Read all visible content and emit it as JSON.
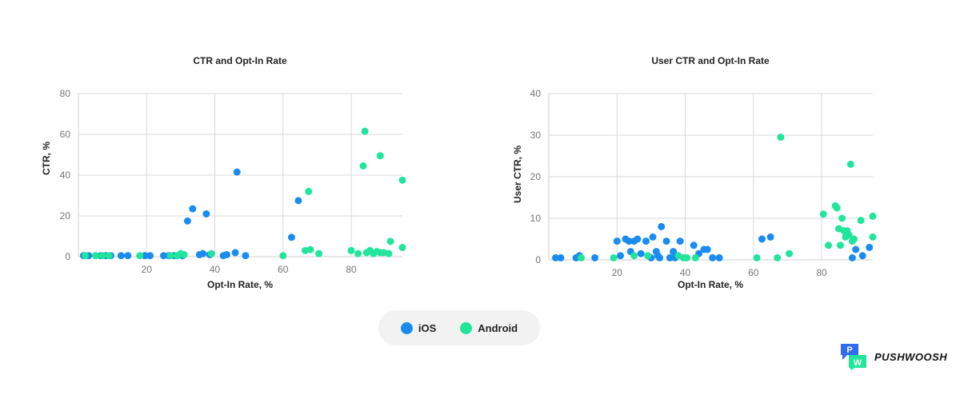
{
  "colors": {
    "ios": "#1a8cf0",
    "android": "#21e59a",
    "brand_blue": "#2f6cf0",
    "brand_green": "#21e59a"
  },
  "legend": {
    "items": [
      {
        "label": "iOS",
        "series": "ios"
      },
      {
        "label": "Android",
        "series": "android"
      }
    ]
  },
  "brand": {
    "name": "PUSHWOOSH",
    "logo_letters": "PW"
  },
  "chart_data": [
    {
      "type": "scatter",
      "title": "CTR and Opt-In Rate",
      "xlabel": "Opt-In Rate, %",
      "ylabel": "CTR, %",
      "xlim": [
        0,
        95
      ],
      "ylim": [
        0,
        80
      ],
      "xticks": [
        20,
        40,
        60,
        80
      ],
      "yticks": [
        0,
        20,
        40,
        60,
        80
      ],
      "grid": true,
      "legend": "bottom-center",
      "series": [
        {
          "name": "iOS",
          "color_key": "ios",
          "points": [
            [
              1.5,
              0.5
            ],
            [
              3,
              0.5
            ],
            [
              6.5,
              0.5
            ],
            [
              8,
              0.5
            ],
            [
              9.5,
              0.5
            ],
            [
              12.5,
              0.5
            ],
            [
              14.5,
              0.5
            ],
            [
              19.5,
              0.5
            ],
            [
              21,
              0.5
            ],
            [
              25,
              0.5
            ],
            [
              26.5,
              0.5
            ],
            [
              28,
              0.5
            ],
            [
              29,
              0.5
            ],
            [
              30.5,
              0.5
            ],
            [
              32,
              17.5
            ],
            [
              33.5,
              23.5
            ],
            [
              35.5,
              1
            ],
            [
              36.5,
              1.5
            ],
            [
              37.5,
              21
            ],
            [
              38.5,
              1
            ],
            [
              42.5,
              0.5
            ],
            [
              43.5,
              1
            ],
            [
              46,
              2
            ],
            [
              46.5,
              41.5
            ],
            [
              49,
              0.5
            ],
            [
              62.5,
              9.5
            ],
            [
              64.5,
              27.5
            ]
          ]
        },
        {
          "name": "Android",
          "color_key": "android",
          "points": [
            [
              2,
              0.5
            ],
            [
              5,
              0.5
            ],
            [
              7,
              0.5
            ],
            [
              9,
              0.5
            ],
            [
              18,
              0.5
            ],
            [
              27,
              0.5
            ],
            [
              29,
              0.5
            ],
            [
              30,
              1.5
            ],
            [
              31,
              1
            ],
            [
              39,
              1.5
            ],
            [
              60,
              0.5
            ],
            [
              66.5,
              3
            ],
            [
              67.5,
              32
            ],
            [
              68,
              3.5
            ],
            [
              70.5,
              1.5
            ],
            [
              80,
              3
            ],
            [
              82,
              1.5
            ],
            [
              83.5,
              44.5
            ],
            [
              84,
              61.5
            ],
            [
              84.5,
              2
            ],
            [
              85.5,
              3
            ],
            [
              86.5,
              1.5
            ],
            [
              87.5,
              2.5
            ],
            [
              88.5,
              2
            ],
            [
              88.5,
              49.5
            ],
            [
              89.5,
              2
            ],
            [
              91,
              1.5
            ],
            [
              91.5,
              7.5
            ],
            [
              95,
              37.5
            ],
            [
              95,
              4.5
            ]
          ]
        }
      ]
    },
    {
      "type": "scatter",
      "title": "User CTR and Opt-In Rate",
      "xlabel": "Opt-In Rate, %",
      "ylabel": "User CTR, %",
      "xlim": [
        0,
        95
      ],
      "ylim": [
        0,
        40
      ],
      "xticks": [
        20,
        40,
        60,
        80
      ],
      "yticks": [
        0,
        10,
        20,
        30,
        40
      ],
      "grid": true,
      "legend": "bottom-center",
      "series": [
        {
          "name": "iOS",
          "color_key": "ios",
          "points": [
            [
              2,
              0.5
            ],
            [
              3.5,
              0.5
            ],
            [
              8,
              0.5
            ],
            [
              9,
              1
            ],
            [
              13.5,
              0.5
            ],
            [
              20,
              4.5
            ],
            [
              21,
              1
            ],
            [
              22.5,
              5
            ],
            [
              23.5,
              4.5
            ],
            [
              24,
              2
            ],
            [
              25,
              4.5
            ],
            [
              26,
              5
            ],
            [
              27,
              1.5
            ],
            [
              28.5,
              4.5
            ],
            [
              30,
              0.5
            ],
            [
              30.5,
              5.5
            ],
            [
              31.5,
              2
            ],
            [
              32,
              1
            ],
            [
              32.5,
              0.5
            ],
            [
              33,
              8
            ],
            [
              34.5,
              4.5
            ],
            [
              35.5,
              0.5
            ],
            [
              36.5,
              2
            ],
            [
              37,
              0.5
            ],
            [
              37.5,
              1
            ],
            [
              38.5,
              4.5
            ],
            [
              42.5,
              3.5
            ],
            [
              44,
              1.5
            ],
            [
              45.5,
              2.5
            ],
            [
              46.5,
              2.5
            ],
            [
              48,
              0.5
            ],
            [
              50,
              0.5
            ],
            [
              62.5,
              5
            ],
            [
              65,
              5.5
            ],
            [
              89,
              0.5
            ],
            [
              90,
              2.5
            ],
            [
              92,
              1
            ],
            [
              94,
              3
            ]
          ]
        },
        {
          "name": "Android",
          "color_key": "android",
          "points": [
            [
              9.5,
              0.5
            ],
            [
              19,
              0.5
            ],
            [
              25,
              1
            ],
            [
              29,
              1
            ],
            [
              38,
              1
            ],
            [
              39.5,
              0.5
            ],
            [
              40.5,
              0.5
            ],
            [
              43,
              0.5
            ],
            [
              61,
              0.5
            ],
            [
              67,
              0.5
            ],
            [
              68,
              29.5
            ],
            [
              70.5,
              1.5
            ],
            [
              80.5,
              11
            ],
            [
              82,
              3.5
            ],
            [
              84,
              13
            ],
            [
              84.5,
              12.5
            ],
            [
              85,
              7.5
            ],
            [
              85.5,
              3.5
            ],
            [
              86,
              10
            ],
            [
              86.5,
              7
            ],
            [
              87,
              5.5
            ],
            [
              87.5,
              7
            ],
            [
              88,
              6
            ],
            [
              88.5,
              23
            ],
            [
              89,
              4.5
            ],
            [
              89.5,
              5
            ],
            [
              91.5,
              9.5
            ],
            [
              95,
              10.5
            ],
            [
              95,
              5.5
            ]
          ]
        }
      ]
    }
  ]
}
